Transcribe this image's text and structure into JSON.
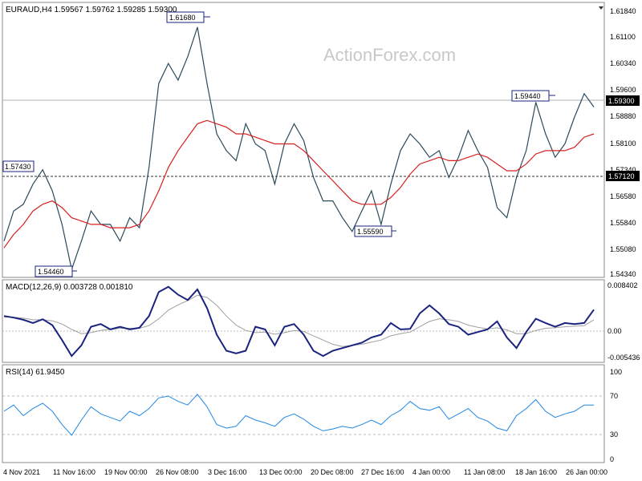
{
  "chart_data": [
    {
      "type": "line",
      "title": "EURAUD,H4  1.59567 1.59762 1.59285 1.59300",
      "watermark": "ActionForex.com",
      "ylim": [
        1.5434,
        1.6218
      ],
      "y_ticks": [
        "1.61840",
        "1.61100",
        "1.60340",
        "1.59600",
        "1.58880",
        "1.58100",
        "1.57340",
        "1.56580",
        "1.55840",
        "1.55080",
        "1.54340"
      ],
      "x_ticks": [
        "4 Nov 2021",
        "11 Nov 16:00",
        "19 Nov 00:00",
        "26 Nov 08:00",
        "3 Dec 16:00",
        "13 Dec 00:00",
        "20 Dec 08:00",
        "27 Dec 16:00",
        "4 Jan 00:00",
        "11 Jan 08:00",
        "18 Jan 16:00",
        "26 Jan 00:00"
      ],
      "current_price": "1.59300",
      "level_line": "1.57120",
      "annotations": [
        "1.61680",
        "1.59440",
        "1.57430",
        "1.55590",
        "1.54460"
      ],
      "series": [
        {
          "name": "",
          "color": "#2b4a5a",
          "values": [
            1.553,
            1.562,
            1.564,
            1.57,
            1.5743,
            1.568,
            1.558,
            1.5446,
            1.553,
            1.562,
            1.558,
            1.558,
            1.553,
            1.56,
            1.557,
            1.575,
            1.6,
            1.606,
            1.601,
            1.608,
            1.6168,
            1.6,
            1.585,
            1.58,
            1.577,
            1.588,
            1.582,
            1.58,
            1.57,
            1.582,
            1.588,
            1.583,
            1.572,
            1.565,
            1.565,
            1.56,
            1.5559,
            1.562,
            1.568,
            1.558,
            1.57,
            1.58,
            1.585,
            1.582,
            1.578,
            1.58,
            1.572,
            1.578,
            1.586,
            1.58,
            1.575,
            1.563,
            1.56,
            1.572,
            1.58,
            1.5944,
            1.585,
            1.578,
            1.582,
            1.59,
            1.597,
            1.593
          ]
        },
        {
          "name": "",
          "color": "#d62020",
          "values": [
            1.551,
            1.555,
            1.558,
            1.562,
            1.564,
            1.565,
            1.563,
            1.56,
            1.559,
            1.558,
            1.558,
            1.557,
            1.557,
            1.557,
            1.558,
            1.562,
            1.568,
            1.575,
            1.58,
            1.584,
            1.588,
            1.589,
            1.588,
            1.587,
            1.585,
            1.585,
            1.584,
            1.583,
            1.582,
            1.582,
            1.582,
            1.58,
            1.577,
            1.574,
            1.571,
            1.568,
            1.565,
            1.564,
            1.564,
            1.564,
            1.566,
            1.569,
            1.573,
            1.576,
            1.577,
            1.578,
            1.577,
            1.577,
            1.578,
            1.579,
            1.578,
            1.576,
            1.574,
            1.574,
            1.576,
            1.579,
            1.58,
            1.58,
            1.58,
            1.581,
            1.584,
            1.585
          ]
        }
      ]
    },
    {
      "type": "line",
      "title": "MACD(12,26,9) 0.003728 0.001810",
      "ylim": [
        -0.00543,
        0.0084
      ],
      "y_ticks": [
        "0.008402",
        "0.00",
        "-0.005436"
      ],
      "series": [
        {
          "name": "",
          "color": "#1a237e",
          "values": [
            0.0025,
            0.0022,
            0.0018,
            0.0012,
            0.0019,
            0.0008,
            -0.002,
            -0.005,
            -0.003,
            0.0005,
            0.001,
            0.0,
            0.0005,
            0.0,
            0.0003,
            0.0025,
            0.007,
            0.008,
            0.0065,
            0.0055,
            0.0075,
            0.004,
            -0.001,
            -0.004,
            -0.0045,
            -0.004,
            0.0005,
            0.0,
            -0.003,
            0.0005,
            0.001,
            -0.001,
            -0.004,
            -0.005,
            -0.004,
            -0.0035,
            -0.003,
            -0.0025,
            -0.0015,
            -0.001,
            0.0012,
            0.0,
            0.0001,
            0.003,
            0.0045,
            0.003,
            0.001,
            0.0005,
            -0.001,
            -0.0005,
            0.0,
            0.0015,
            -0.0015,
            -0.0035,
            -0.0005,
            0.002,
            0.0012,
            0.0005,
            0.0012,
            0.001,
            0.0012,
            0.0037
          ]
        },
        {
          "name": "",
          "color": "#a0a0a0",
          "values": [
            0.0023,
            0.0023,
            0.0021,
            0.0018,
            0.0018,
            0.0016,
            0.001,
            0.0,
            -0.0008,
            -0.0006,
            -0.0002,
            0.0,
            0.0002,
            0.0002,
            0.0002,
            0.0007,
            0.002,
            0.0036,
            0.0046,
            0.0054,
            0.0064,
            0.006,
            0.0045,
            0.0025,
            0.0008,
            -0.0002,
            -0.0006,
            -0.0005,
            -0.0009,
            -0.0006,
            -0.0002,
            -0.0004,
            -0.0012,
            -0.002,
            -0.0028,
            -0.0032,
            -0.003,
            -0.0028,
            -0.0024,
            -0.002,
            -0.0012,
            -0.0008,
            -0.0005,
            0.0005,
            0.0015,
            0.002,
            0.0018,
            0.0015,
            0.0008,
            0.0004,
            0.0001,
            0.0003,
            -0.0001,
            -0.0008,
            -0.0008,
            -0.0002,
            0.0002,
            0.0003,
            0.0005,
            0.0006,
            0.0007,
            0.0018
          ]
        }
      ]
    },
    {
      "type": "line",
      "title": "RSI(14) 61.9450",
      "ylim": [
        0,
        100
      ],
      "y_ticks": [
        "100",
        "70",
        "30",
        "0"
      ],
      "series": [
        {
          "name": "",
          "color": "#1e88e5",
          "values": [
            55,
            62,
            50,
            58,
            64,
            55,
            40,
            28,
            45,
            60,
            52,
            48,
            44,
            55,
            50,
            58,
            70,
            72,
            66,
            62,
            74,
            60,
            40,
            36,
            38,
            50,
            45,
            42,
            38,
            48,
            52,
            46,
            38,
            33,
            35,
            38,
            36,
            40,
            45,
            40,
            50,
            56,
            66,
            58,
            56,
            60,
            46,
            52,
            58,
            48,
            44,
            36,
            33,
            50,
            58,
            68,
            55,
            48,
            52,
            55,
            62,
            62
          ]
        }
      ]
    }
  ]
}
